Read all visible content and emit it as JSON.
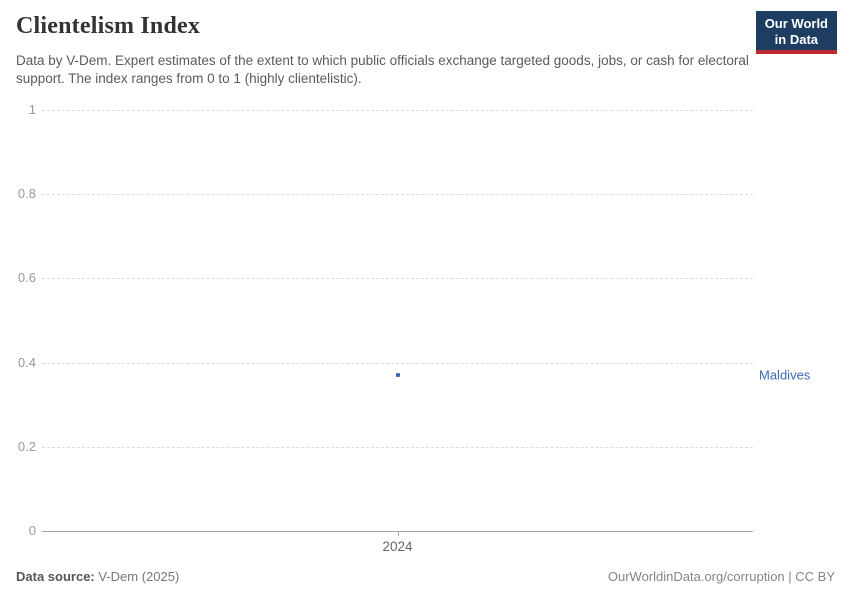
{
  "header": {
    "title": "Clientelism Index",
    "subtitle": "Data by V-Dem. Expert estimates of the extent to which public officials exchange targeted goods, jobs, or cash for electoral support. The index ranges from 0 to 1 (highly clientelistic).",
    "logo": {
      "line1": "Our World",
      "line2": "in Data",
      "background_color": "#1d3d63",
      "accent_color": "#bc2b30"
    }
  },
  "chart_data": {
    "type": "scatter",
    "title": "Clientelism Index",
    "x": [
      2024
    ],
    "series": [
      {
        "name": "Maldives",
        "values": [
          0.37
        ],
        "color": "#3d6bb3"
      }
    ],
    "xlabel": "",
    "ylabel": "",
    "ylim": [
      0,
      1
    ],
    "yticks": [
      0,
      0.2,
      0.4,
      0.6,
      0.8,
      1
    ],
    "xticks": [
      2024
    ],
    "grid": "horizontal-dashed",
    "legend_position": "right-of-point",
    "entity_label": "Maldives"
  },
  "footer": {
    "source_label": "Data source:",
    "source_value": "V-Dem (2025)",
    "attribution": "OurWorldinData.org/corruption | CC BY"
  }
}
